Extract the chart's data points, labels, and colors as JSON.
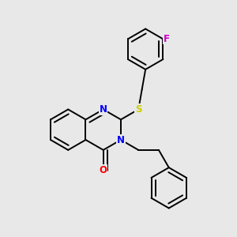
{
  "background_color": "#e8e8e8",
  "atom_colors": {
    "N": "#0000ff",
    "O": "#ff0000",
    "S": "#cccc00",
    "F": "#cc00cc",
    "C": "#000000"
  },
  "bond_color": "#000000",
  "bond_width": 1.4,
  "font_size_atom": 8.5
}
